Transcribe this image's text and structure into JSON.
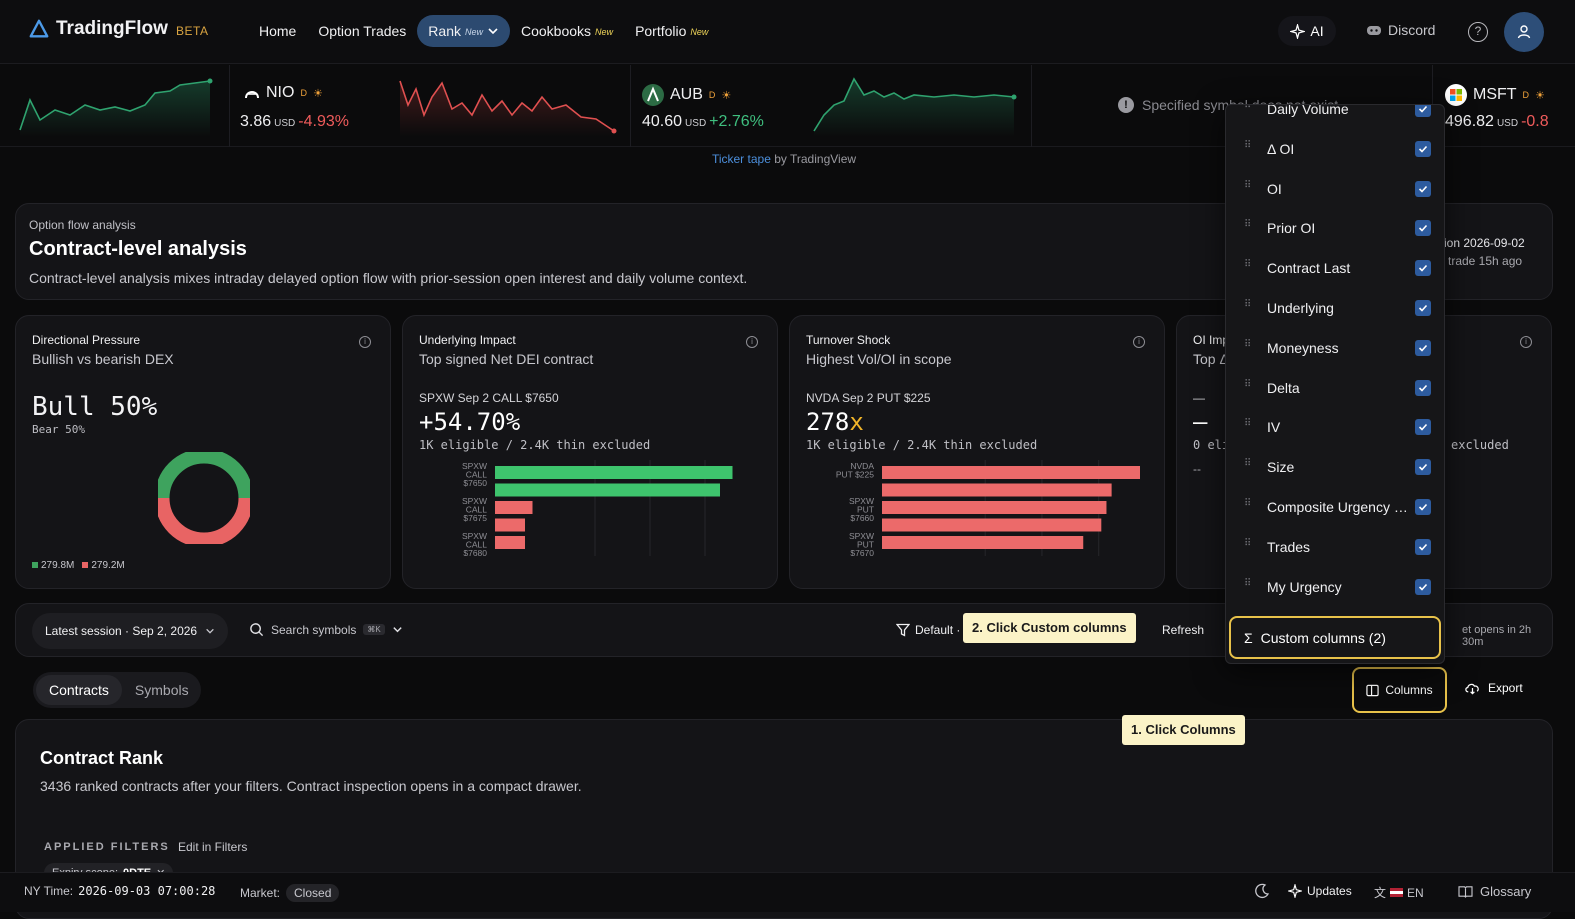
{
  "nav": {
    "brand": "TradingFlow",
    "beta": "BETA",
    "links": [
      {
        "label": "Home",
        "badge": ""
      },
      {
        "label": "Option Trades",
        "badge": ""
      },
      {
        "label": "Rank",
        "badge": "New"
      },
      {
        "label": "Cookbooks",
        "badge": "New"
      },
      {
        "label": "Portfolio",
        "badge": "New"
      }
    ],
    "ai": "AI",
    "discord": "Discord"
  },
  "ticker": {
    "items": [
      {
        "symbol": "NIO",
        "flag": "D",
        "price": "3.86",
        "currency": "USD",
        "change": "-4.93%",
        "trend": "down"
      },
      {
        "symbol": "AUB",
        "flag": "D",
        "price": "40.60",
        "currency": "USD",
        "change": "+2.76%",
        "trend": "up"
      },
      {
        "symbol": "MSFT",
        "flag": "D",
        "price": "496.82",
        "currency": "USD",
        "change": "-0.8",
        "trend": "down"
      }
    ],
    "error": "Specified symbol does not exist",
    "credit_link": "Ticker tape",
    "credit_rest": " by TradingView"
  },
  "hero": {
    "eyebrow": "Option flow analysis",
    "title": "Contract-level analysis",
    "subtitle": "Contract-level analysis mixes intraday delayed option flow with prior-session open interest and daily volume context.",
    "session_line": "sion 2026-09-02",
    "last_trade": "trade 15h ago"
  },
  "kpis": {
    "directional": {
      "title": "Directional Pressure",
      "subtitle": "Bullish vs bearish DEX",
      "bull": "Bull 50%",
      "bear": "Bear 50%",
      "legend_green": "279.8M",
      "legend_red": "279.2M",
      "split": [
        0.5,
        0.5
      ]
    },
    "underlying": {
      "title": "Underlying Impact",
      "subtitle": "Top signed Net DEI contract",
      "contract": "SPXW Sep 2 CALL $7650",
      "value": "+54.70%",
      "eligible": "1K eligible / 2.4K thin excluded"
    },
    "turnover": {
      "title": "Turnover Shock",
      "subtitle": "Highest Vol/OI in scope",
      "contract": "NVDA Sep 2 PUT $225",
      "value": "278",
      "suffix": "x",
      "eligible": "1K eligible / 2.4K thin excluded"
    },
    "oi": {
      "title": "OI Imp",
      "subtitle": "Top Δ",
      "contract": "—",
      "value": "—",
      "eligible_left": "0 eli",
      "eligible_right": "excluded",
      "dash": "--"
    }
  },
  "toolbar": {
    "session": "Latest session · Sep 2, 2026",
    "search_placeholder": "Search symbols",
    "kbd": "⌘K",
    "default": "Default ·",
    "refresh": "Refresh",
    "market_opens": "et opens in 2h 30m"
  },
  "tabs": [
    "Contracts",
    "Symbols"
  ],
  "actions": {
    "columns": "Columns",
    "export": "Export"
  },
  "rank": {
    "title": "Contract Rank",
    "subtitle": "3436 ranked contracts after your filters. Contract inspection opens in a compact drawer.",
    "applied": "APPLIED FILTERS",
    "edit": "Edit in Filters",
    "chip_label": "Expiry scope:",
    "chip_value": "0DTE"
  },
  "columns_menu": {
    "items": [
      "Daily Volume",
      "Δ OI",
      "OI",
      "Prior OI",
      "Contract Last",
      "Underlying",
      "Moneyness",
      "Delta",
      "IV",
      "Size",
      "Composite Urgency Score",
      "Trades",
      "My Urgency"
    ],
    "custom": "Custom columns (2)"
  },
  "tips": {
    "step1": "1. Click Columns",
    "step2": "2. Click Custom columns"
  },
  "status": {
    "ny_label": "NY Time:",
    "ny_time": "2026-09-03 07:00:28",
    "market_label": "Market:",
    "market_state": "Closed",
    "updates": "Updates",
    "lang": "EN",
    "glossary": "Glossary"
  },
  "charts": {
    "underlying_bars": [
      {
        "label": [
          "SPXW",
          "CALL",
          "$7650"
        ],
        "value": 0.95,
        "color": "green"
      },
      {
        "label": [],
        "value": 0.9,
        "color": "green"
      },
      {
        "label": [
          "SPXW",
          "CALL",
          "$7675"
        ],
        "value": 0.15,
        "color": "red"
      },
      {
        "label": [],
        "value": 0.12,
        "color": "red"
      },
      {
        "label": [
          "SPXW",
          "CALL",
          "$7680"
        ],
        "value": 0.12,
        "color": "red"
      }
    ],
    "turnover_bars": [
      {
        "label": [
          "NVDA",
          "PUT $225"
        ],
        "value": 1.0,
        "color": "red"
      },
      {
        "label": [],
        "value": 0.89,
        "color": "red"
      },
      {
        "label": [
          "SPXW",
          "PUT",
          "$7660"
        ],
        "value": 0.87,
        "color": "red"
      },
      {
        "label": [],
        "value": 0.85,
        "color": "red"
      },
      {
        "label": [
          "SPXW",
          "PUT",
          "$7670"
        ],
        "value": 0.78,
        "color": "red"
      }
    ]
  }
}
